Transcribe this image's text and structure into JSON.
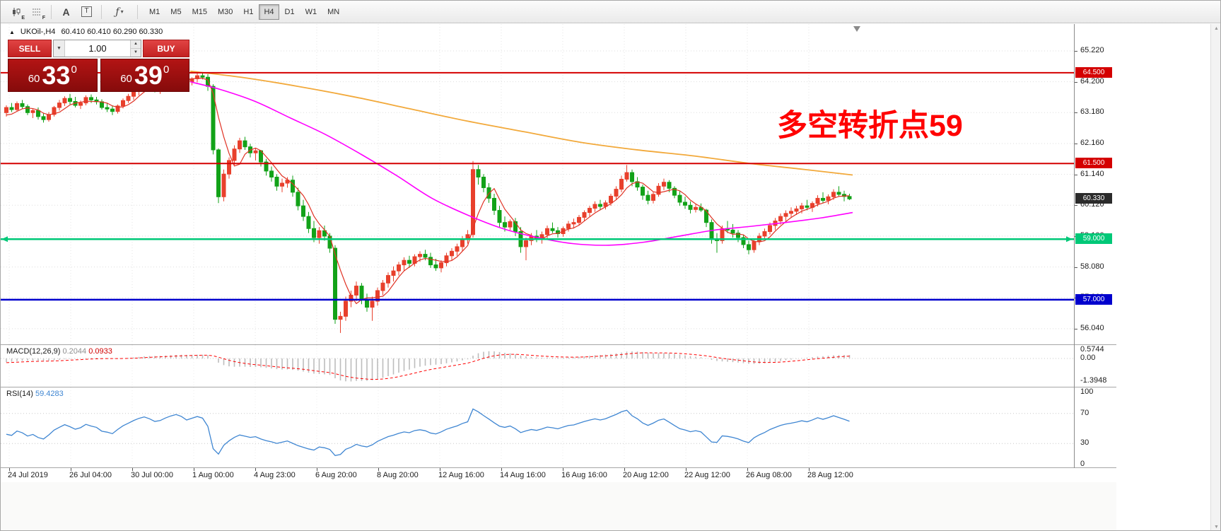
{
  "toolbar": {
    "icons": [
      {
        "name": "chart-style-icon",
        "glyph": "E"
      },
      {
        "name": "grid-icon",
        "glyph": "F"
      },
      {
        "name": "text-annotation-icon",
        "glyph": "A"
      },
      {
        "name": "textbox-icon",
        "glyph": "T"
      },
      {
        "name": "indicators-icon",
        "glyph": "ƒ"
      }
    ],
    "indicators_caret": "▾",
    "timeframes": [
      "M1",
      "M5",
      "M15",
      "M30",
      "H1",
      "H4",
      "D1",
      "W1",
      "MN"
    ],
    "active_timeframe": "H4"
  },
  "symbol_info": {
    "collapse_arrow": "▲",
    "symbol": "UKOil-,H4",
    "ohlc": "60.410 60.410 60.290 60.330"
  },
  "one_click": {
    "sell_label": "SELL",
    "buy_label": "BUY",
    "volume": "1.00",
    "dropdown_caret": "▼",
    "spin_up": "▲",
    "spin_down": "▼",
    "sell_price": {
      "prefix": "60",
      "big": "33",
      "sup": "0"
    },
    "buy_price": {
      "prefix": "60",
      "big": "39",
      "sup": "0"
    }
  },
  "annotation": {
    "text": "多空转折点59",
    "color": "#FF0000"
  },
  "price_axis": {
    "labels": [
      "65.220",
      "64.200",
      "63.180",
      "62.160",
      "61.140",
      "60.120",
      "59.100",
      "58.080",
      "57.060",
      "56.040"
    ],
    "values": [
      65.22,
      64.2,
      63.18,
      62.16,
      61.14,
      60.12,
      59.1,
      58.08,
      57.06,
      56.04
    ],
    "badges": [
      {
        "text": "64.500",
        "value": 64.5,
        "bg": "#d40000",
        "fg": "#ffffff"
      },
      {
        "text": "61.500",
        "value": 61.5,
        "bg": "#d40000",
        "fg": "#ffffff"
      },
      {
        "text": "60.330",
        "value": 60.33,
        "bg": "#2b2b2b",
        "fg": "#ffffff"
      },
      {
        "text": "59.000",
        "value": 59.0,
        "bg": "#00c878",
        "fg": "#ffffff"
      },
      {
        "text": "57.000",
        "value": 57.0,
        "bg": "#0000cd",
        "fg": "#ffffff"
      }
    ]
  },
  "macd_panel": {
    "name": "MACD(12,26,9)",
    "main_value": "0.2044",
    "signal_value": "0.0933",
    "scale_labels": [
      "0.5744",
      "0.00",
      "-1.3948"
    ],
    "scale_values": [
      0.5744,
      0,
      -1.3948
    ]
  },
  "rsi_panel": {
    "name": "RSI(14)",
    "value": "59.4283",
    "scale_labels": [
      "100",
      "70",
      "30",
      "0"
    ],
    "scale_values": [
      100,
      70,
      30,
      0
    ],
    "levels": [
      70,
      30
    ]
  },
  "time_axis": {
    "labels": [
      "24 Jul 2019",
      "26 Jul 04:00",
      "30 Jul 00:00",
      "1 Aug 00:00",
      "4 Aug 23:00",
      "6 Aug 20:00",
      "8 Aug 20:00",
      "12 Aug 16:00",
      "14 Aug 16:00",
      "16 Aug 16:00",
      "20 Aug 12:00",
      "22 Aug 12:00",
      "26 Aug 08:00",
      "28 Aug 12:00"
    ]
  },
  "scrollbar": {
    "up": "▲",
    "down": "▼"
  },
  "chart_data": {
    "type": "candlestick",
    "symbol": "UKOil",
    "timeframe": "H4",
    "up_color": "#e8402c",
    "down_color": "#12a218",
    "price_range_visible": [
      55.5,
      66.1
    ],
    "horizontal_lines": [
      {
        "value": 64.5,
        "color": "#d40000",
        "width": 2,
        "arrows": false
      },
      {
        "value": 61.5,
        "color": "#d40000",
        "width": 2,
        "arrows": false
      },
      {
        "value": 59.0,
        "color": "#00c878",
        "width": 2.5,
        "arrows": true
      },
      {
        "value": 57.0,
        "color": "#0000cd",
        "width": 2.5,
        "arrows": false
      }
    ],
    "current_price": 60.33,
    "ohlc": [
      [
        63.18,
        63.42,
        63.05,
        63.35
      ],
      [
        63.35,
        63.5,
        63.2,
        63.28
      ],
      [
        63.28,
        63.55,
        63.22,
        63.48
      ],
      [
        63.48,
        63.6,
        63.3,
        63.38
      ],
      [
        63.38,
        63.45,
        63.1,
        63.18
      ],
      [
        63.18,
        63.3,
        63.0,
        63.25
      ],
      [
        63.25,
        63.35,
        62.95,
        63.05
      ],
      [
        63.05,
        63.15,
        62.85,
        62.95
      ],
      [
        62.95,
        63.2,
        62.88,
        63.12
      ],
      [
        63.12,
        63.4,
        63.05,
        63.35
      ],
      [
        63.35,
        63.6,
        63.25,
        63.5
      ],
      [
        63.5,
        63.72,
        63.4,
        63.65
      ],
      [
        63.65,
        63.8,
        63.45,
        63.55
      ],
      [
        63.55,
        63.7,
        63.35,
        63.42
      ],
      [
        63.42,
        63.58,
        63.3,
        63.5
      ],
      [
        63.5,
        63.75,
        63.42,
        63.68
      ],
      [
        63.68,
        63.78,
        63.5,
        63.6
      ],
      [
        63.6,
        63.7,
        63.45,
        63.54
      ],
      [
        63.54,
        63.62,
        63.28,
        63.35
      ],
      [
        63.35,
        63.5,
        63.2,
        63.3
      ],
      [
        63.3,
        63.42,
        63.1,
        63.22
      ],
      [
        63.22,
        63.45,
        63.15,
        63.4
      ],
      [
        63.4,
        63.65,
        63.32,
        63.58
      ],
      [
        63.58,
        63.8,
        63.5,
        63.72
      ],
      [
        63.72,
        63.95,
        63.6,
        63.88
      ],
      [
        63.88,
        64.1,
        63.75,
        64.02
      ],
      [
        64.02,
        64.2,
        63.9,
        64.12
      ],
      [
        64.12,
        64.25,
        63.95,
        64.05
      ],
      [
        64.05,
        64.18,
        63.85,
        63.95
      ],
      [
        63.95,
        64.08,
        63.8,
        64.0
      ],
      [
        64.0,
        64.22,
        63.9,
        64.15
      ],
      [
        64.15,
        64.35,
        64.05,
        64.28
      ],
      [
        64.28,
        64.45,
        64.15,
        64.38
      ],
      [
        64.38,
        64.5,
        64.25,
        64.32
      ],
      [
        64.32,
        64.42,
        64.1,
        64.2
      ],
      [
        64.2,
        64.35,
        64.08,
        64.3
      ],
      [
        64.3,
        64.48,
        64.18,
        64.4
      ],
      [
        64.4,
        64.52,
        64.28,
        64.35
      ],
      [
        64.35,
        64.45,
        63.9,
        64.05
      ],
      [
        64.05,
        64.12,
        61.8,
        61.95
      ],
      [
        61.95,
        62.0,
        60.19,
        60.4
      ],
      [
        60.4,
        61.3,
        60.25,
        61.15
      ],
      [
        61.15,
        61.7,
        61.0,
        61.6
      ],
      [
        61.6,
        62.1,
        61.45,
        61.98
      ],
      [
        61.98,
        62.35,
        61.85,
        62.25
      ],
      [
        62.25,
        62.38,
        61.95,
        62.05
      ],
      [
        62.05,
        62.15,
        61.7,
        61.85
      ],
      [
        61.85,
        62.0,
        61.6,
        61.92
      ],
      [
        61.92,
        61.95,
        61.4,
        61.55
      ],
      [
        61.55,
        61.65,
        61.1,
        61.25
      ],
      [
        61.25,
        61.4,
        60.9,
        61.05
      ],
      [
        61.05,
        61.15,
        60.6,
        60.75
      ],
      [
        60.75,
        61.0,
        60.55,
        60.85
      ],
      [
        60.85,
        61.05,
        60.7,
        60.95
      ],
      [
        60.95,
        61.1,
        60.4,
        60.55
      ],
      [
        60.55,
        60.7,
        59.95,
        60.1
      ],
      [
        60.1,
        60.3,
        59.6,
        59.75
      ],
      [
        59.75,
        59.9,
        59.2,
        59.35
      ],
      [
        59.35,
        59.6,
        58.9,
        59.05
      ],
      [
        59.05,
        59.4,
        58.85,
        59.28
      ],
      [
        59.28,
        59.45,
        58.95,
        59.1
      ],
      [
        59.1,
        59.2,
        58.55,
        58.7
      ],
      [
        58.7,
        58.8,
        56.2,
        56.35
      ],
      [
        56.35,
        56.6,
        55.9,
        56.45
      ],
      [
        56.45,
        57.1,
        56.3,
        56.95
      ],
      [
        56.95,
        57.3,
        56.75,
        57.15
      ],
      [
        57.15,
        57.6,
        56.95,
        57.45
      ],
      [
        57.45,
        57.55,
        56.85,
        57.0
      ],
      [
        57.0,
        57.2,
        56.6,
        56.75
      ],
      [
        56.75,
        57.1,
        56.3,
        56.95
      ],
      [
        56.95,
        57.4,
        56.8,
        57.3
      ],
      [
        57.3,
        57.65,
        57.15,
        57.55
      ],
      [
        57.55,
        57.9,
        57.4,
        57.8
      ],
      [
        57.8,
        58.1,
        57.6,
        57.95
      ],
      [
        57.95,
        58.25,
        57.8,
        58.15
      ],
      [
        58.15,
        58.4,
        57.95,
        58.3
      ],
      [
        58.3,
        58.45,
        58.05,
        58.2
      ],
      [
        58.2,
        58.5,
        58.1,
        58.42
      ],
      [
        58.42,
        58.6,
        58.25,
        58.5
      ],
      [
        58.5,
        58.65,
        58.3,
        58.4
      ],
      [
        58.4,
        58.55,
        58.05,
        58.15
      ],
      [
        58.15,
        58.35,
        57.95,
        58.05
      ],
      [
        58.05,
        58.3,
        57.9,
        58.22
      ],
      [
        58.22,
        58.55,
        58.1,
        58.45
      ],
      [
        58.45,
        58.7,
        58.3,
        58.6
      ],
      [
        58.6,
        58.85,
        58.45,
        58.75
      ],
      [
        58.75,
        59.1,
        58.6,
        58.98
      ],
      [
        58.98,
        59.3,
        58.85,
        59.15
      ],
      [
        59.15,
        61.58,
        59.05,
        61.3
      ],
      [
        61.3,
        61.45,
        60.8,
        61.05
      ],
      [
        61.05,
        61.15,
        60.55,
        60.7
      ],
      [
        60.7,
        60.85,
        60.2,
        60.35
      ],
      [
        60.35,
        60.5,
        59.8,
        59.95
      ],
      [
        59.95,
        60.1,
        59.4,
        59.55
      ],
      [
        59.55,
        59.75,
        59.25,
        59.4
      ],
      [
        59.4,
        59.65,
        59.3,
        59.58
      ],
      [
        59.58,
        59.7,
        59.1,
        59.25
      ],
      [
        59.25,
        59.4,
        58.55,
        58.75
      ],
      [
        58.75,
        59.05,
        58.3,
        58.95
      ],
      [
        58.95,
        59.2,
        58.8,
        59.1
      ],
      [
        59.1,
        59.3,
        58.9,
        59.0
      ],
      [
        59.0,
        59.25,
        58.85,
        59.15
      ],
      [
        59.15,
        59.45,
        59.0,
        59.35
      ],
      [
        59.35,
        59.55,
        59.2,
        59.28
      ],
      [
        59.28,
        59.4,
        59.05,
        59.18
      ],
      [
        59.18,
        59.42,
        59.08,
        59.35
      ],
      [
        59.35,
        59.6,
        59.25,
        59.5
      ],
      [
        59.5,
        59.68,
        59.35,
        59.55
      ],
      [
        59.55,
        59.8,
        59.45,
        59.72
      ],
      [
        59.72,
        59.95,
        59.6,
        59.88
      ],
      [
        59.88,
        60.1,
        59.75,
        60.02
      ],
      [
        60.02,
        60.25,
        59.9,
        60.15
      ],
      [
        60.15,
        60.3,
        59.95,
        60.08
      ],
      [
        60.08,
        60.28,
        59.98,
        60.2
      ],
      [
        60.2,
        60.5,
        60.1,
        60.42
      ],
      [
        60.42,
        60.75,
        60.3,
        60.65
      ],
      [
        60.65,
        61.1,
        60.55,
        60.98
      ],
      [
        60.98,
        61.45,
        60.9,
        61.2
      ],
      [
        61.2,
        61.3,
        60.75,
        60.9
      ],
      [
        60.9,
        61.05,
        60.6,
        60.72
      ],
      [
        60.72,
        60.8,
        60.3,
        60.45
      ],
      [
        60.45,
        60.6,
        60.15,
        60.28
      ],
      [
        60.28,
        60.55,
        60.18,
        60.48
      ],
      [
        60.48,
        60.85,
        60.4,
        60.75
      ],
      [
        60.75,
        61.0,
        60.62,
        60.88
      ],
      [
        60.88,
        60.95,
        60.55,
        60.68
      ],
      [
        60.68,
        60.75,
        60.35,
        60.45
      ],
      [
        60.45,
        60.58,
        60.1,
        60.22
      ],
      [
        60.22,
        60.4,
        60.0,
        60.12
      ],
      [
        60.12,
        60.25,
        59.85,
        59.98
      ],
      [
        59.98,
        60.15,
        59.88,
        60.05
      ],
      [
        60.05,
        60.18,
        59.9,
        59.96
      ],
      [
        59.96,
        60.0,
        59.4,
        59.55
      ],
      [
        59.55,
        59.65,
        58.85,
        59.0
      ],
      [
        59.0,
        59.2,
        58.55,
        58.95
      ],
      [
        58.95,
        59.45,
        58.85,
        59.35
      ],
      [
        59.35,
        59.6,
        59.2,
        59.3
      ],
      [
        59.3,
        59.5,
        59.05,
        59.2
      ],
      [
        59.2,
        59.3,
        58.9,
        59.05
      ],
      [
        59.05,
        59.15,
        58.7,
        58.82
      ],
      [
        58.82,
        58.95,
        58.5,
        58.65
      ],
      [
        58.65,
        59.0,
        58.55,
        58.92
      ],
      [
        58.92,
        59.2,
        58.8,
        59.1
      ],
      [
        59.1,
        59.35,
        59.0,
        59.25
      ],
      [
        59.25,
        59.55,
        59.15,
        59.45
      ],
      [
        59.45,
        59.7,
        59.3,
        59.6
      ],
      [
        59.6,
        59.85,
        59.48,
        59.75
      ],
      [
        59.75,
        59.95,
        59.6,
        59.85
      ],
      [
        59.85,
        60.05,
        59.7,
        59.92
      ],
      [
        59.92,
        60.1,
        59.8,
        60.0
      ],
      [
        60.0,
        60.2,
        59.85,
        60.1
      ],
      [
        60.1,
        60.3,
        59.95,
        60.05
      ],
      [
        60.05,
        60.25,
        59.9,
        60.18
      ],
      [
        60.18,
        60.45,
        60.08,
        60.35
      ],
      [
        60.35,
        60.55,
        60.2,
        60.28
      ],
      [
        60.28,
        60.48,
        60.15,
        60.4
      ],
      [
        60.4,
        60.65,
        60.3,
        60.55
      ],
      [
        60.55,
        60.75,
        60.4,
        60.48
      ],
      [
        60.48,
        60.6,
        60.25,
        60.41
      ],
      [
        60.41,
        60.5,
        60.29,
        60.33
      ]
    ],
    "warmup_closes": [
      65.3,
      65.22,
      65.31,
      65.18,
      65.12,
      65.2,
      65.05,
      64.98,
      65.06,
      64.92,
      64.86,
      64.94,
      64.8,
      64.73,
      64.81,
      64.67,
      64.6,
      64.68,
      64.55,
      64.48,
      64.56,
      64.42,
      64.35,
      64.43,
      64.3,
      64.22,
      64.31,
      64.18,
      64.1,
      64.18,
      64.05,
      63.98,
      64.06,
      63.92,
      63.86,
      63.94,
      63.81,
      63.74,
      63.82,
      63.69,
      63.62,
      63.7,
      63.57,
      63.5,
      63.58,
      63.45,
      63.38,
      63.46,
      63.33,
      63.26,
      63.34,
      63.22,
      63.16,
      63.24,
      63.12,
      63.06,
      63.14,
      63.02,
      62.96,
      63.04
    ],
    "ma_fast": {
      "period": 5,
      "color": "#e03224"
    },
    "ma_lines": [
      {
        "name": "ma-slow-orange",
        "color": "#f2a93b",
        "points": [
          [
            268,
            64.55
          ],
          [
            340,
            64.35
          ],
          [
            420,
            64.05
          ],
          [
            500,
            63.7
          ],
          [
            580,
            63.3
          ],
          [
            660,
            62.9
          ],
          [
            740,
            62.55
          ],
          [
            820,
            62.2
          ],
          [
            900,
            61.95
          ],
          [
            980,
            61.75
          ],
          [
            1060,
            61.5
          ],
          [
            1130,
            61.32
          ],
          [
            1205,
            61.12
          ]
        ]
      },
      {
        "name": "ma-mid-magenta",
        "color": "#ff00ff",
        "points": [
          [
            268,
            64.2
          ],
          [
            310,
            63.95
          ],
          [
            360,
            63.55
          ],
          [
            410,
            63.0
          ],
          [
            460,
            62.45
          ],
          [
            510,
            61.8
          ],
          [
            560,
            61.1
          ],
          [
            610,
            60.35
          ],
          [
            660,
            59.8
          ],
          [
            710,
            59.35
          ],
          [
            760,
            59.05
          ],
          [
            810,
            58.85
          ],
          [
            860,
            58.8
          ],
          [
            910,
            58.9
          ],
          [
            960,
            59.1
          ],
          [
            1010,
            59.3
          ],
          [
            1060,
            59.42
          ],
          [
            1110,
            59.55
          ],
          [
            1160,
            59.7
          ],
          [
            1205,
            59.88
          ]
        ]
      }
    ],
    "macd": {
      "fast": 12,
      "slow": 26,
      "signal": 9,
      "histogram_color": "#bdbdbd",
      "signal_color": "#ff0000"
    },
    "rsi": {
      "period": 14,
      "color": "#3f86d2"
    }
  }
}
